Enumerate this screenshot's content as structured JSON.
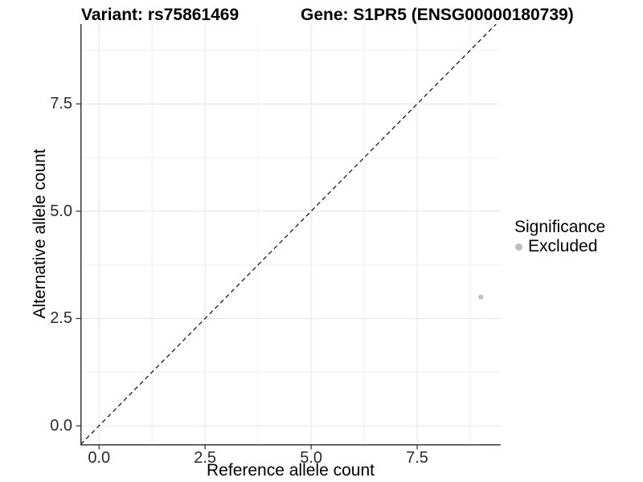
{
  "titles": {
    "left": "Variant: rs75861469",
    "right": "Gene: S1PR5 (ENSG00000180739)"
  },
  "chart_data": {
    "type": "scatter",
    "xlabel": "Reference allele count",
    "ylabel": "Alternative allele count",
    "x_ticks": [
      0.0,
      2.5,
      5.0,
      7.5
    ],
    "y_ticks": [
      0.0,
      2.5,
      5.0,
      7.5
    ],
    "x_tick_labels": [
      "0.0",
      "2.5",
      "5.0",
      "7.5"
    ],
    "y_tick_labels": [
      "0.0",
      "2.5",
      "5.0",
      "7.5"
    ],
    "x_minor_ticks": [
      1.25,
      3.75,
      6.25,
      8.75
    ],
    "y_minor_ticks": [
      1.25,
      3.75,
      6.25,
      8.75
    ],
    "xlim": [
      -0.44,
      9.47
    ],
    "ylim": [
      -0.43,
      9.36
    ],
    "grid": "major+minor",
    "legend_position": "right",
    "points": [
      {
        "x": 9,
        "y": 3,
        "series": "Excluded"
      }
    ],
    "reference_line": {
      "style": "dashed",
      "slope": 1,
      "intercept": 0
    }
  },
  "legend": {
    "title": "Significance",
    "items": [
      {
        "label": "Excluded",
        "color": "#bdbdbd"
      }
    ]
  },
  "colors": {
    "background": "#ffffff",
    "grid_major": "#e4e4e4",
    "grid_minor": "#f0f0f0",
    "axis_line": "#383838",
    "tick_mark": "#383838",
    "tick_label": "#2b2b2b",
    "reference_line": "#1a1a1a",
    "point": "#c3c3c3"
  }
}
